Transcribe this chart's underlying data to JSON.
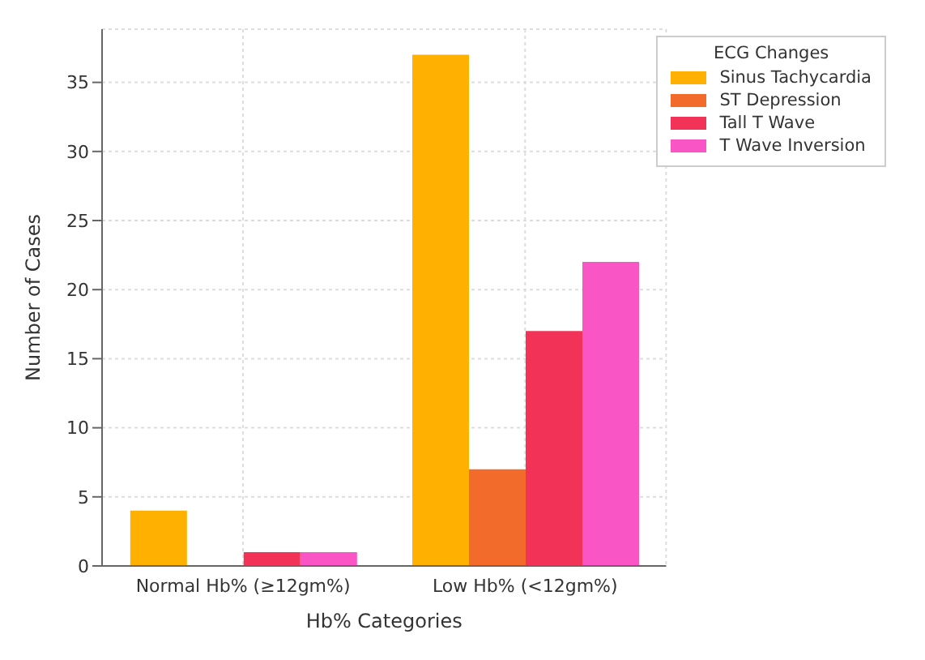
{
  "chart_data": {
    "type": "bar",
    "xlabel": "Hb% Categories",
    "ylabel": "Number of Cases",
    "legend_title": "ECG Changes",
    "categories": [
      "Normal Hb% (≥12gm%)",
      "Low Hb% (<12gm%)"
    ],
    "series": [
      {
        "name": "Sinus Tachycardia",
        "color": "#ffb000",
        "values": [
          4,
          37
        ]
      },
      {
        "name": "ST Depression",
        "color": "#f26b2a",
        "values": [
          0,
          7
        ]
      },
      {
        "name": "Tall T Wave",
        "color": "#f23256",
        "values": [
          1,
          17
        ]
      },
      {
        "name": "T Wave Inversion",
        "color": "#fa55c4",
        "values": [
          1,
          22
        ]
      }
    ],
    "ylim": [
      0,
      38.85
    ],
    "yticks": [
      0,
      5,
      10,
      15,
      20,
      25,
      30,
      35
    ],
    "grid": true,
    "legend": "top right"
  }
}
